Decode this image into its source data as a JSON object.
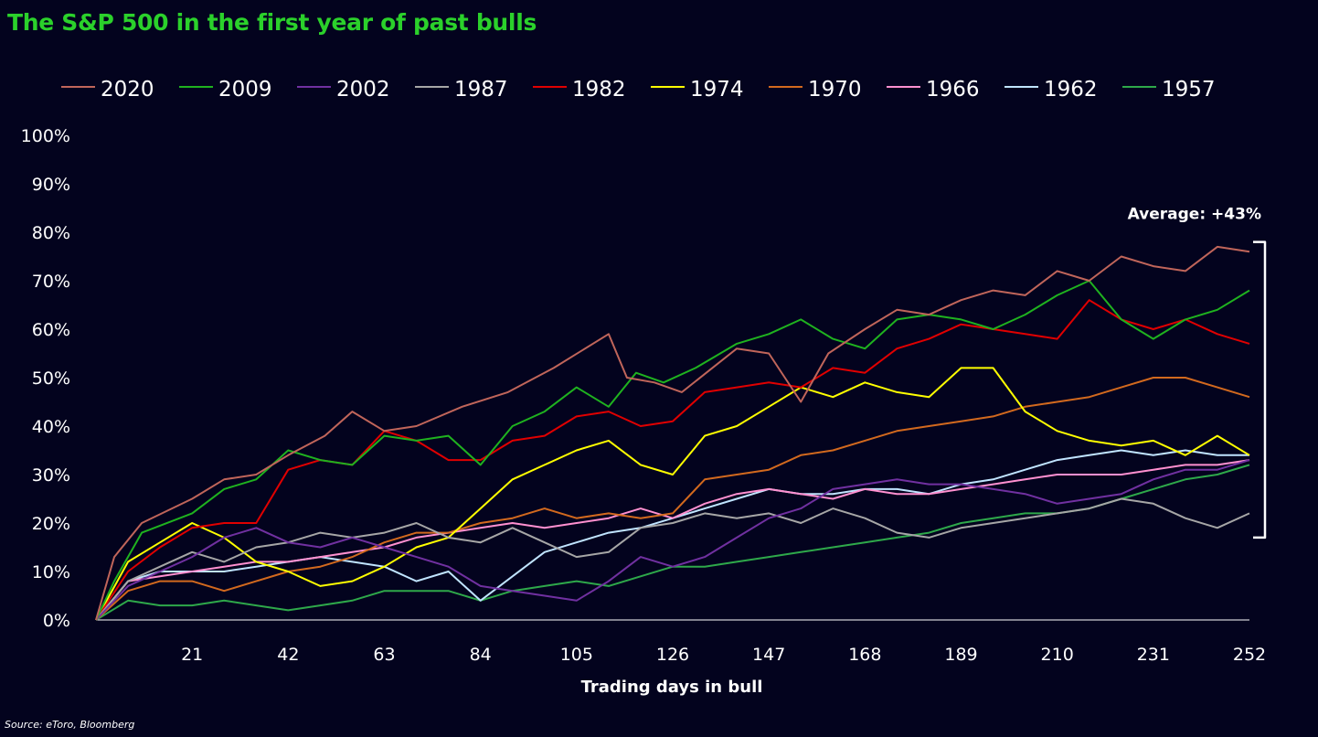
{
  "title": "The S&P 500 in the first year of past bulls",
  "source": "Source: eToro, Bloomberg",
  "chart_data": {
    "type": "line",
    "title": "The S&P 500 in the first year of past bulls",
    "xlabel": "Trading days in bull",
    "ylabel": "",
    "xlim": [
      0,
      252
    ],
    "ylim": [
      0,
      100
    ],
    "x_ticks": [
      21,
      42,
      63,
      84,
      105,
      126,
      147,
      168,
      189,
      210,
      231,
      252
    ],
    "y_ticks": [
      0,
      10,
      20,
      30,
      40,
      50,
      60,
      70,
      80,
      90,
      100
    ],
    "y_tick_labels": [
      "0%",
      "10%",
      "20%",
      "30%",
      "40%",
      "50%",
      "60%",
      "70%",
      "80%",
      "90%",
      "100%"
    ],
    "grid": false,
    "legend_position": "top",
    "annotation": {
      "label": "Average: +43%",
      "range": [
        17,
        78
      ]
    },
    "series": [
      {
        "name": "2020",
        "color": "#c0655a",
        "x": [
          0,
          4,
          10,
          21,
          28,
          35,
          42,
          50,
          56,
          63,
          70,
          80,
          90,
          100,
          112,
          116,
          122,
          128,
          140,
          147,
          154,
          160,
          168,
          175,
          182,
          189,
          196,
          203,
          210,
          217,
          224,
          231,
          238,
          245,
          252
        ],
        "values": [
          0,
          13,
          20,
          25,
          29,
          30,
          34,
          38,
          43,
          39,
          40,
          44,
          47,
          52,
          59,
          50,
          49,
          47,
          56,
          55,
          45,
          55,
          60,
          64,
          63,
          66,
          68,
          67,
          72,
          70,
          75,
          73,
          72,
          77,
          76
        ]
      },
      {
        "name": "2009",
        "color": "#1fb21f",
        "x": [
          0,
          4,
          10,
          21,
          28,
          35,
          42,
          49,
          56,
          63,
          70,
          77,
          84,
          91,
          98,
          105,
          112,
          118,
          124,
          131,
          140,
          147,
          154,
          161,
          168,
          175,
          182,
          189,
          196,
          203,
          210,
          217,
          224,
          231,
          238,
          245,
          252
        ],
        "values": [
          0,
          8,
          18,
          22,
          27,
          29,
          35,
          33,
          32,
          38,
          37,
          38,
          32,
          40,
          43,
          48,
          44,
          51,
          49,
          52,
          57,
          59,
          62,
          58,
          56,
          62,
          63,
          62,
          60,
          63,
          67,
          70,
          62,
          58,
          62,
          64,
          68
        ]
      },
      {
        "name": "2002",
        "color": "#7030a0",
        "x": [
          0,
          7,
          14,
          21,
          28,
          35,
          42,
          49,
          56,
          63,
          70,
          77,
          84,
          91,
          98,
          105,
          112,
          119,
          126,
          133,
          140,
          147,
          154,
          161,
          168,
          175,
          182,
          189,
          196,
          203,
          210,
          217,
          224,
          231,
          238,
          245,
          252
        ],
        "values": [
          0,
          7,
          10,
          13,
          17,
          19,
          16,
          15,
          17,
          15,
          13,
          11,
          7,
          6,
          5,
          4,
          8,
          13,
          11,
          13,
          17,
          21,
          23,
          27,
          28,
          29,
          28,
          28,
          27,
          26,
          24,
          25,
          26,
          29,
          31,
          31,
          33
        ]
      },
      {
        "name": "1987",
        "color": "#a6a6a6",
        "x": [
          0,
          7,
          14,
          21,
          28,
          35,
          42,
          49,
          56,
          63,
          70,
          77,
          84,
          91,
          98,
          105,
          112,
          119,
          126,
          133,
          140,
          147,
          154,
          161,
          168,
          175,
          182,
          189,
          196,
          203,
          210,
          217,
          224,
          231,
          238,
          245,
          252
        ],
        "values": [
          0,
          8,
          11,
          14,
          12,
          15,
          16,
          18,
          17,
          18,
          20,
          17,
          16,
          19,
          16,
          13,
          14,
          19,
          20,
          22,
          21,
          22,
          20,
          23,
          21,
          18,
          17,
          19,
          20,
          21,
          22,
          23,
          25,
          24,
          21,
          19,
          22
        ]
      },
      {
        "name": "1982",
        "color": "#e00000",
        "x": [
          0,
          7,
          14,
          21,
          28,
          35,
          42,
          49,
          56,
          63,
          70,
          77,
          84,
          91,
          98,
          105,
          112,
          119,
          126,
          133,
          140,
          147,
          154,
          161,
          168,
          175,
          182,
          189,
          196,
          203,
          210,
          217,
          224,
          231,
          238,
          245,
          252
        ],
        "values": [
          0,
          10,
          15,
          19,
          20,
          20,
          31,
          33,
          32,
          39,
          37,
          33,
          33,
          37,
          38,
          42,
          43,
          40,
          41,
          47,
          48,
          49,
          48,
          52,
          51,
          56,
          58,
          61,
          60,
          59,
          58,
          66,
          62,
          60,
          62,
          59,
          57
        ]
      },
      {
        "name": "1974",
        "color": "#ffff00",
        "x": [
          0,
          7,
          14,
          21,
          28,
          35,
          42,
          49,
          56,
          63,
          70,
          77,
          84,
          91,
          98,
          105,
          112,
          119,
          126,
          133,
          140,
          147,
          154,
          161,
          168,
          175,
          182,
          189,
          196,
          203,
          210,
          217,
          224,
          231,
          238,
          245,
          252
        ],
        "values": [
          0,
          12,
          16,
          20,
          17,
          12,
          10,
          7,
          8,
          11,
          15,
          17,
          23,
          29,
          32,
          35,
          37,
          32,
          30,
          38,
          40,
          44,
          48,
          46,
          49,
          47,
          46,
          52,
          52,
          43,
          39,
          37,
          36,
          37,
          34,
          38,
          34
        ]
      },
      {
        "name": "1970",
        "color": "#d2691e",
        "x": [
          0,
          7,
          14,
          21,
          28,
          35,
          42,
          49,
          56,
          63,
          70,
          77,
          84,
          91,
          98,
          105,
          112,
          119,
          126,
          133,
          140,
          147,
          154,
          161,
          168,
          175,
          182,
          189,
          196,
          203,
          210,
          217,
          224,
          231,
          238,
          245,
          252
        ],
        "values": [
          0,
          6,
          8,
          8,
          6,
          8,
          10,
          11,
          13,
          16,
          18,
          18,
          20,
          21,
          23,
          21,
          22,
          21,
          22,
          29,
          30,
          31,
          34,
          35,
          37,
          39,
          40,
          41,
          42,
          44,
          45,
          46,
          48,
          50,
          50,
          48,
          46
        ]
      },
      {
        "name": "1966",
        "color": "#ff90d0",
        "x": [
          0,
          7,
          14,
          21,
          28,
          35,
          42,
          49,
          56,
          63,
          70,
          77,
          84,
          91,
          98,
          105,
          112,
          119,
          126,
          133,
          140,
          147,
          154,
          161,
          168,
          175,
          182,
          189,
          196,
          203,
          210,
          217,
          224,
          231,
          238,
          245,
          252
        ],
        "values": [
          0,
          8,
          9,
          10,
          11,
          12,
          12,
          13,
          14,
          15,
          17,
          18,
          19,
          20,
          19,
          20,
          21,
          23,
          21,
          24,
          26,
          27,
          26,
          25,
          27,
          26,
          26,
          27,
          28,
          29,
          30,
          30,
          30,
          31,
          32,
          32,
          33
        ]
      },
      {
        "name": "1962",
        "color": "#c0e4ff",
        "x": [
          0,
          7,
          14,
          21,
          28,
          35,
          42,
          49,
          56,
          63,
          70,
          77,
          84,
          91,
          98,
          105,
          112,
          119,
          126,
          133,
          140,
          147,
          154,
          161,
          168,
          175,
          182,
          189,
          196,
          203,
          210,
          217,
          224,
          231,
          238,
          245,
          252
        ],
        "values": [
          0,
          8,
          10,
          10,
          10,
          11,
          12,
          13,
          12,
          11,
          8,
          10,
          4,
          9,
          14,
          16,
          18,
          19,
          21,
          23,
          25,
          27,
          26,
          26,
          27,
          27,
          26,
          28,
          29,
          31,
          33,
          34,
          35,
          34,
          35,
          34,
          34
        ]
      },
      {
        "name": "1957",
        "color": "#2ea84a",
        "x": [
          0,
          7,
          14,
          21,
          28,
          35,
          42,
          49,
          56,
          63,
          70,
          77,
          84,
          91,
          98,
          105,
          112,
          119,
          126,
          133,
          140,
          147,
          154,
          161,
          168,
          175,
          182,
          189,
          196,
          203,
          210,
          217,
          224,
          231,
          238,
          245,
          252
        ],
        "values": [
          0,
          4,
          3,
          3,
          4,
          3,
          2,
          3,
          4,
          6,
          6,
          6,
          4,
          6,
          7,
          8,
          7,
          9,
          11,
          11,
          12,
          13,
          14,
          15,
          16,
          17,
          18,
          20,
          21,
          22,
          22,
          23,
          25,
          27,
          29,
          30,
          32
        ]
      }
    ]
  }
}
